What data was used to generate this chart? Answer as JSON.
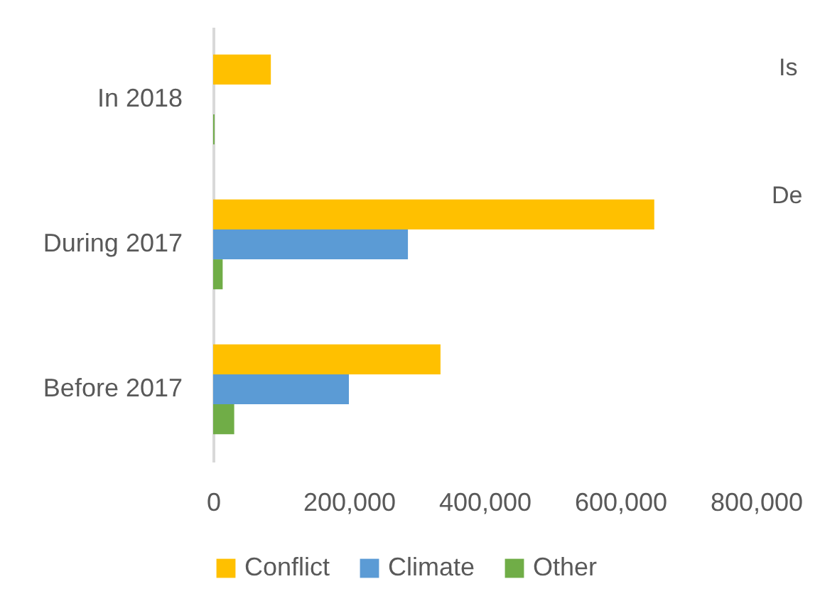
{
  "chart_data": {
    "type": "bar",
    "orientation": "horizontal",
    "categories": [
      "In 2018",
      "During 2017",
      "Before 2017"
    ],
    "series": [
      {
        "name": "Conflict",
        "color": "#ffc000",
        "values": [
          85000,
          650000,
          335000
        ]
      },
      {
        "name": "Climate",
        "color": "#5b9bd5",
        "values": [
          null,
          287000,
          200000
        ]
      },
      {
        "name": "Other",
        "color": "#70ad47",
        "values": [
          2000,
          14000,
          31000
        ]
      }
    ],
    "xlim": [
      0,
      800000
    ],
    "xticks": [
      {
        "value": 0,
        "label": "0"
      },
      {
        "value": 200000,
        "label": "200,000"
      },
      {
        "value": 400000,
        "label": "400,000"
      },
      {
        "value": 600000,
        "label": "600,000"
      },
      {
        "value": 800000,
        "label": "800,000"
      }
    ],
    "legend": "bottom",
    "grid": false,
    "annotations": [
      "Is",
      "De"
    ]
  }
}
